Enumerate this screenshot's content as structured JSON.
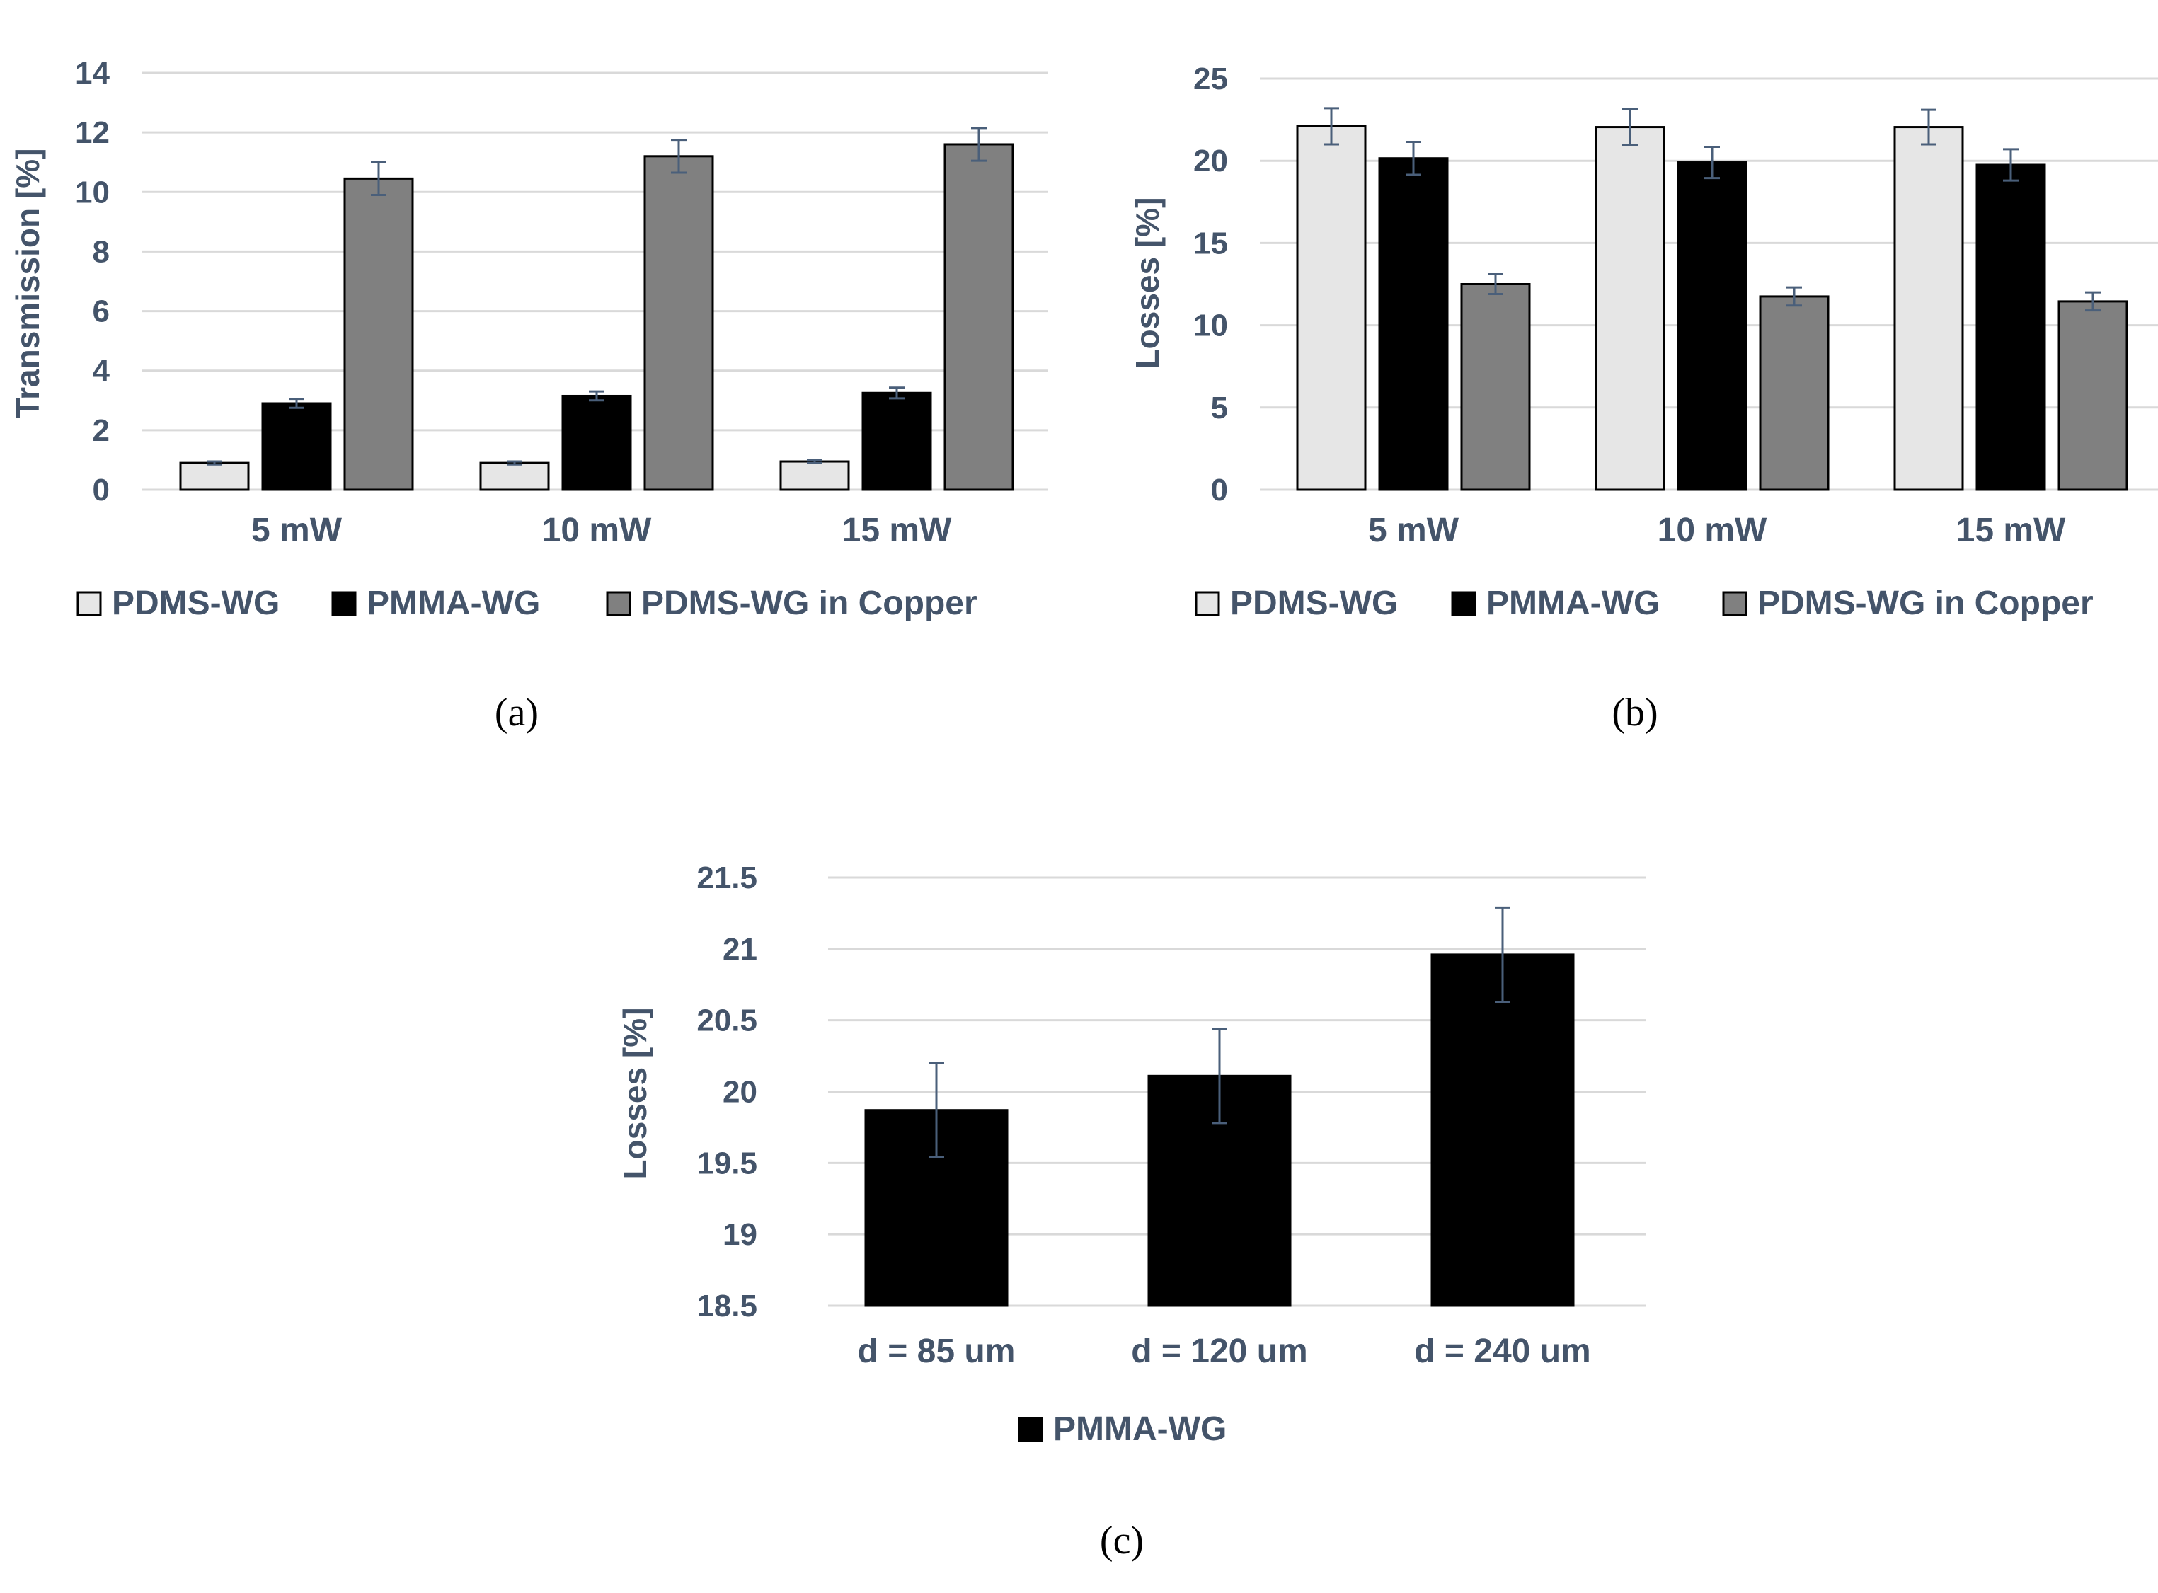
{
  "colors": {
    "grid": "#d9d9d9",
    "text": "#44546a",
    "error_bar": "#4a5f7a",
    "bar_stroke": "#000000"
  },
  "chart_data": [
    {
      "id": "a",
      "type": "bar",
      "panel_label": "(a)",
      "title": "",
      "xlabel": "",
      "ylabel": "Transmission [%]",
      "categories": [
        "5 mW",
        "10 mW",
        "15 mW"
      ],
      "ylim": [
        0,
        14
      ],
      "yticks": [
        0,
        2,
        4,
        6,
        8,
        10,
        12,
        14
      ],
      "ytick_labels": [
        "0",
        "2",
        "4",
        "6",
        "8",
        "10",
        "12",
        "14"
      ],
      "grid": true,
      "legend_position": "bottom",
      "series": [
        {
          "name": "PDMS-WG",
          "color": "#e6e6e6",
          "values": [
            0.9,
            0.9,
            0.95
          ],
          "errors": [
            0.05,
            0.05,
            0.05
          ]
        },
        {
          "name": "PMMA-WG",
          "color": "#000000",
          "values": [
            2.9,
            3.15,
            3.25
          ],
          "errors": [
            0.15,
            0.15,
            0.18
          ]
        },
        {
          "name": "PDMS-WG in Copper",
          "color": "#808080",
          "values": [
            10.45,
            11.2,
            11.6
          ],
          "errors": [
            0.55,
            0.55,
            0.55
          ]
        }
      ]
    },
    {
      "id": "b",
      "type": "bar",
      "panel_label": "(b)",
      "title": "",
      "xlabel": "",
      "ylabel": "Losses [%]",
      "categories": [
        "5 mW",
        "10 mW",
        "15 mW"
      ],
      "ylim": [
        0,
        25
      ],
      "yticks": [
        0,
        5,
        10,
        15,
        20,
        25
      ],
      "ytick_labels": [
        "0",
        "5",
        "10",
        "15",
        "20",
        "25"
      ],
      "grid": true,
      "legend_position": "bottom",
      "series": [
        {
          "name": "PDMS-WG",
          "color": "#e6e6e6",
          "values": [
            22.1,
            22.05,
            22.05
          ],
          "errors": [
            1.1,
            1.1,
            1.05
          ]
        },
        {
          "name": "PMMA-WG",
          "color": "#000000",
          "values": [
            20.15,
            19.9,
            19.75
          ],
          "errors": [
            1.0,
            0.95,
            0.95
          ]
        },
        {
          "name": "PDMS-WG in Copper",
          "color": "#808080",
          "values": [
            12.5,
            11.75,
            11.45
          ],
          "errors": [
            0.6,
            0.55,
            0.55
          ]
        }
      ]
    },
    {
      "id": "c",
      "type": "bar",
      "panel_label": "(c)",
      "title": "",
      "xlabel": "",
      "ylabel": "Losses [%]",
      "categories": [
        "d = 85 um",
        "d = 120 um",
        "d = 240 um"
      ],
      "ylim": [
        18.5,
        21.5
      ],
      "yticks": [
        18.5,
        19,
        19.5,
        20,
        20.5,
        21,
        21.5
      ],
      "ytick_labels": [
        "18.5",
        "19",
        "19.5",
        "20",
        "20.5",
        "21",
        "21.5"
      ],
      "grid": true,
      "legend_position": "bottom",
      "series": [
        {
          "name": "PMMA-WG",
          "color": "#000000",
          "values": [
            19.87,
            20.11,
            20.96
          ],
          "errors": [
            0.33,
            0.33,
            0.33
          ]
        }
      ]
    }
  ]
}
